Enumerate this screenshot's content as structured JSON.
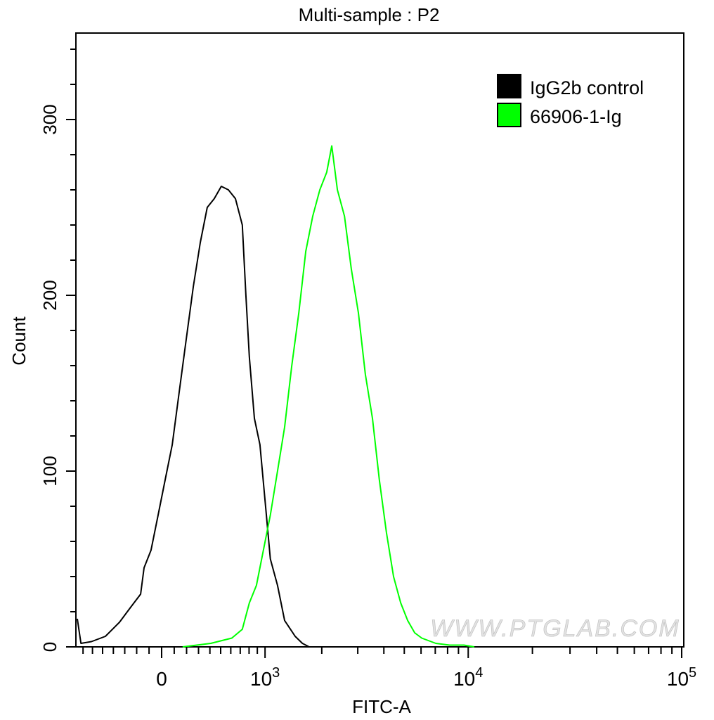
{
  "chart_data": {
    "type": "line",
    "title": "Multi-sample : P2",
    "xlabel": "FITC-A",
    "ylabel": "Count",
    "x_scale": "biexponential",
    "xlim": [
      -780,
      100000
    ],
    "ylim": [
      0,
      350
    ],
    "grid": false,
    "legend_position": "top-right",
    "x_ticks": [
      {
        "value": 0,
        "label": "0",
        "exp": ""
      },
      {
        "value": 1000,
        "label": "10",
        "exp": "3"
      },
      {
        "value": 10000,
        "label": "10",
        "exp": "4"
      },
      {
        "value": 100000,
        "label": "10",
        "exp": "5"
      }
    ],
    "y_ticks": [
      {
        "value": 0,
        "label": "0"
      },
      {
        "value": 100,
        "label": "100"
      },
      {
        "value": 200,
        "label": "200"
      },
      {
        "value": 300,
        "label": "300"
      }
    ],
    "series": [
      {
        "name": "IgG2b control",
        "color": "#000000",
        "x": [
          -764,
          -723,
          -611,
          -473,
          -346,
          -256,
          -168,
          -140,
          -84,
          -28,
          28,
          84,
          140,
          197,
          256,
          315,
          376,
          440,
          506,
          576,
          648,
          723,
          763,
          803,
          864,
          933,
          1007,
          1073,
          1176,
          1286,
          1463,
          1595,
          1727
        ],
        "y": [
          16,
          2,
          3,
          6,
          14,
          22,
          30,
          45,
          55,
          75,
          95,
          115,
          145,
          175,
          205,
          230,
          250,
          255,
          262,
          260,
          255,
          240,
          200,
          165,
          130,
          115,
          80,
          50,
          35,
          15,
          6,
          2,
          0
        ]
      },
      {
        "name": "66906-1-Ig",
        "color": "#00ff00",
        "x": [
          168,
          408,
          611,
          723,
          803,
          889,
          978,
          1073,
          1176,
          1286,
          1404,
          1529,
          1661,
          1801,
          1955,
          2117,
          2242,
          2389,
          2587,
          2793,
          3021,
          3263,
          3528,
          3807,
          4116,
          4447,
          4807,
          5189,
          5601,
          6042,
          7041,
          8195,
          9540,
          10680
        ],
        "y": [
          0,
          2,
          5,
          10,
          25,
          35,
          55,
          75,
          100,
          125,
          160,
          190,
          225,
          245,
          260,
          270,
          285,
          260,
          245,
          215,
          190,
          155,
          130,
          95,
          65,
          40,
          25,
          15,
          8,
          5,
          2,
          1,
          1,
          0
        ]
      }
    ],
    "watermark": "WWW.PTGLAB.COM"
  }
}
